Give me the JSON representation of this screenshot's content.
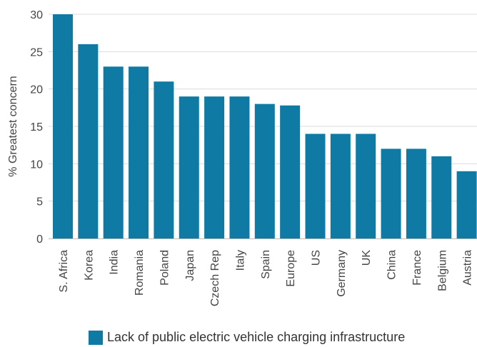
{
  "chart_data": {
    "type": "bar",
    "title": "",
    "xlabel": "",
    "ylabel": "% Greatest concern",
    "ylim": [
      0,
      30
    ],
    "yticks": [
      0,
      5,
      10,
      15,
      20,
      25,
      30
    ],
    "grid": true,
    "legend_position": "bottom",
    "categories": [
      "S. Africa",
      "Korea",
      "India",
      "Romania",
      "Poland",
      "Japan",
      "Czech Rep",
      "Italy",
      "Spain",
      "Europe",
      "US",
      "Germany",
      "UK",
      "China",
      "France",
      "Belgium",
      "Austria"
    ],
    "series": [
      {
        "name": "Lack of public electric vehicle charging infrastructure",
        "color": "#0f7aa3",
        "values": [
          30,
          26,
          23,
          23,
          21,
          19,
          19,
          19,
          18,
          17.8,
          14,
          14,
          14,
          12,
          12,
          11,
          9
        ]
      }
    ]
  }
}
